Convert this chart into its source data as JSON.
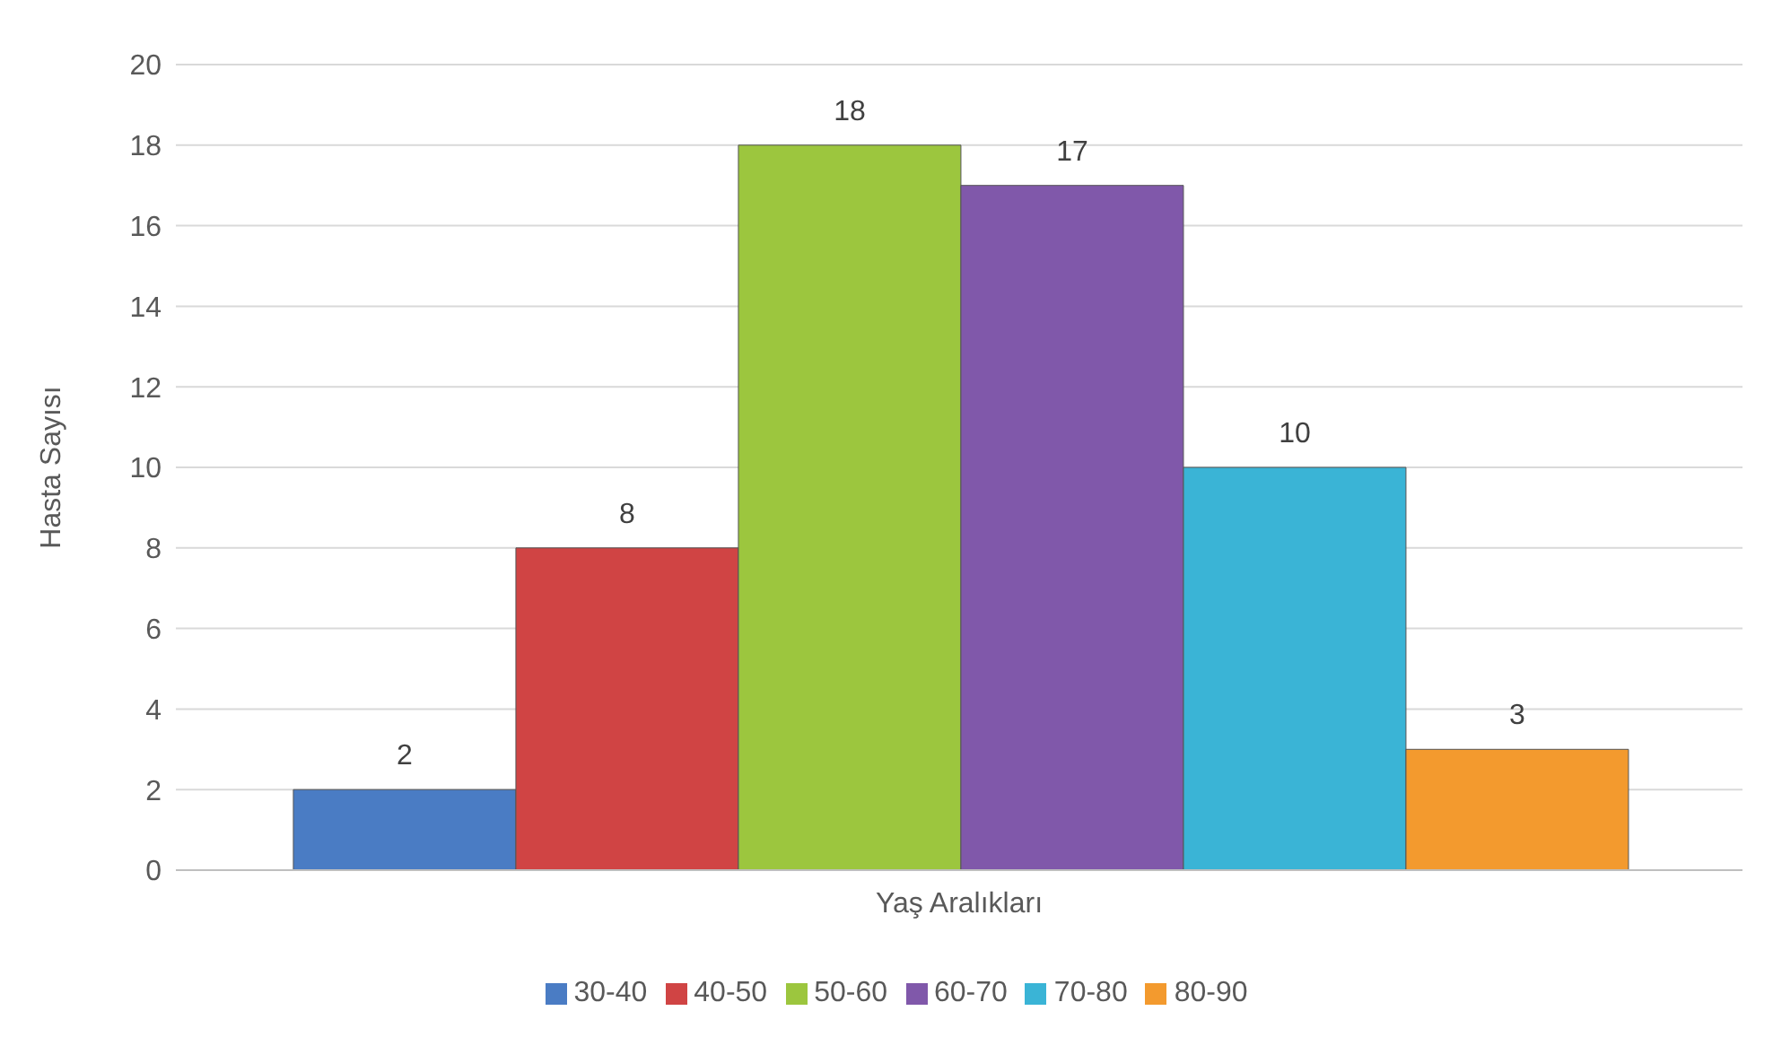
{
  "chart_data": {
    "type": "bar",
    "xlabel": "Yaş Aralıkları",
    "ylabel": "Hasta Sayısı",
    "categories": [
      null
    ],
    "series": [
      {
        "name": "30-40",
        "color": "#4a7cc4",
        "values": [
          2
        ]
      },
      {
        "name": "40-50",
        "color": "#d04444",
        "values": [
          8
        ]
      },
      {
        "name": "50-60",
        "color": "#9cc63e",
        "values": [
          18
        ]
      },
      {
        "name": "60-70",
        "color": "#8058aa",
        "values": [
          17
        ]
      },
      {
        "name": "70-80",
        "color": "#3ab4d6",
        "values": [
          10
        ]
      },
      {
        "name": "80-90",
        "color": "#f39a2e",
        "values": [
          3
        ]
      }
    ],
    "ylim": [
      0,
      20
    ],
    "yticks": [
      0,
      2,
      4,
      6,
      8,
      10,
      12,
      14,
      16,
      18,
      20
    ],
    "grid": "y",
    "legend": "bottom",
    "data_labels": true
  }
}
